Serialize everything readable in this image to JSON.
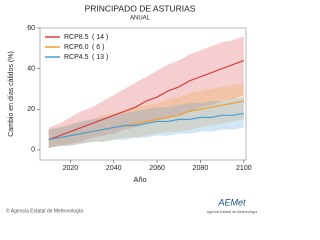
{
  "chart_data": {
    "type": "line",
    "title": "PRINCIPADO DE ASTURIAS",
    "subtitle": "ANUAL",
    "y_label": "Cambio en días cálidos (%)",
    "x_label": "Año",
    "x": [
      2010,
      2015,
      2020,
      2025,
      2030,
      2035,
      2040,
      2045,
      2050,
      2055,
      2060,
      2065,
      2070,
      2075,
      2080,
      2085,
      2090,
      2095,
      2100
    ],
    "xlim": [
      2006,
      2101
    ],
    "xticks": [
      2020,
      2040,
      2060,
      2080,
      2100
    ],
    "ylim": [
      -5,
      60
    ],
    "yticks": [
      0,
      20,
      40,
      60
    ],
    "series": [
      {
        "name": "RCP8.5",
        "count": "( 14 )",
        "color": "#d94040",
        "values": [
          5,
          7,
          9,
          11,
          13,
          15,
          17,
          19,
          21,
          24,
          26,
          29,
          31,
          34,
          36,
          38,
          40,
          42,
          44
        ],
        "lower": [
          1,
          2,
          3,
          4,
          6,
          7,
          8,
          10,
          11,
          13,
          14,
          16,
          17,
          19,
          21,
          22,
          24,
          25,
          27
        ],
        "upper": [
          11,
          13,
          16,
          19,
          21,
          24,
          27,
          30,
          33,
          36,
          39,
          42,
          44,
          47,
          49,
          51,
          53,
          54,
          56
        ]
      },
      {
        "name": "RCP6.0",
        "count": "( 6 )",
        "color": "#f0a030",
        "values": [
          5,
          6,
          7,
          8,
          9,
          10,
          11,
          12,
          13,
          14,
          15,
          16,
          17,
          19,
          20,
          21,
          22,
          23,
          24
        ],
        "lower": [
          1,
          2,
          2,
          3,
          4,
          4,
          5,
          6,
          6,
          7,
          8,
          9,
          9,
          10,
          11,
          12,
          13,
          14,
          15
        ],
        "upper": [
          10,
          11,
          13,
          14,
          15,
          17,
          18,
          19,
          21,
          22,
          23,
          25,
          26,
          28,
          29,
          30,
          31,
          32,
          33
        ]
      },
      {
        "name": "RCP4.5",
        "count": "( 13 )",
        "color": "#4a9fd8",
        "values": [
          5,
          6,
          7,
          8,
          9,
          10,
          11,
          12,
          12,
          13,
          14,
          14,
          15,
          15,
          16,
          16,
          17,
          17,
          18
        ],
        "lower": [
          1,
          2,
          2,
          3,
          4,
          4,
          5,
          5,
          6,
          6,
          7,
          7,
          8,
          8,
          9,
          9,
          10,
          10,
          11
        ],
        "upper": [
          10,
          11,
          12,
          14,
          15,
          16,
          17,
          18,
          19,
          20,
          21,
          21,
          22,
          23,
          23,
          24,
          24,
          25,
          26
        ]
      }
    ]
  },
  "footer": {
    "credit": "© Agencia Estatal de Meteorología",
    "logo": "AEMet",
    "logo_sub": "Agencia Estatal de Meteorología"
  }
}
